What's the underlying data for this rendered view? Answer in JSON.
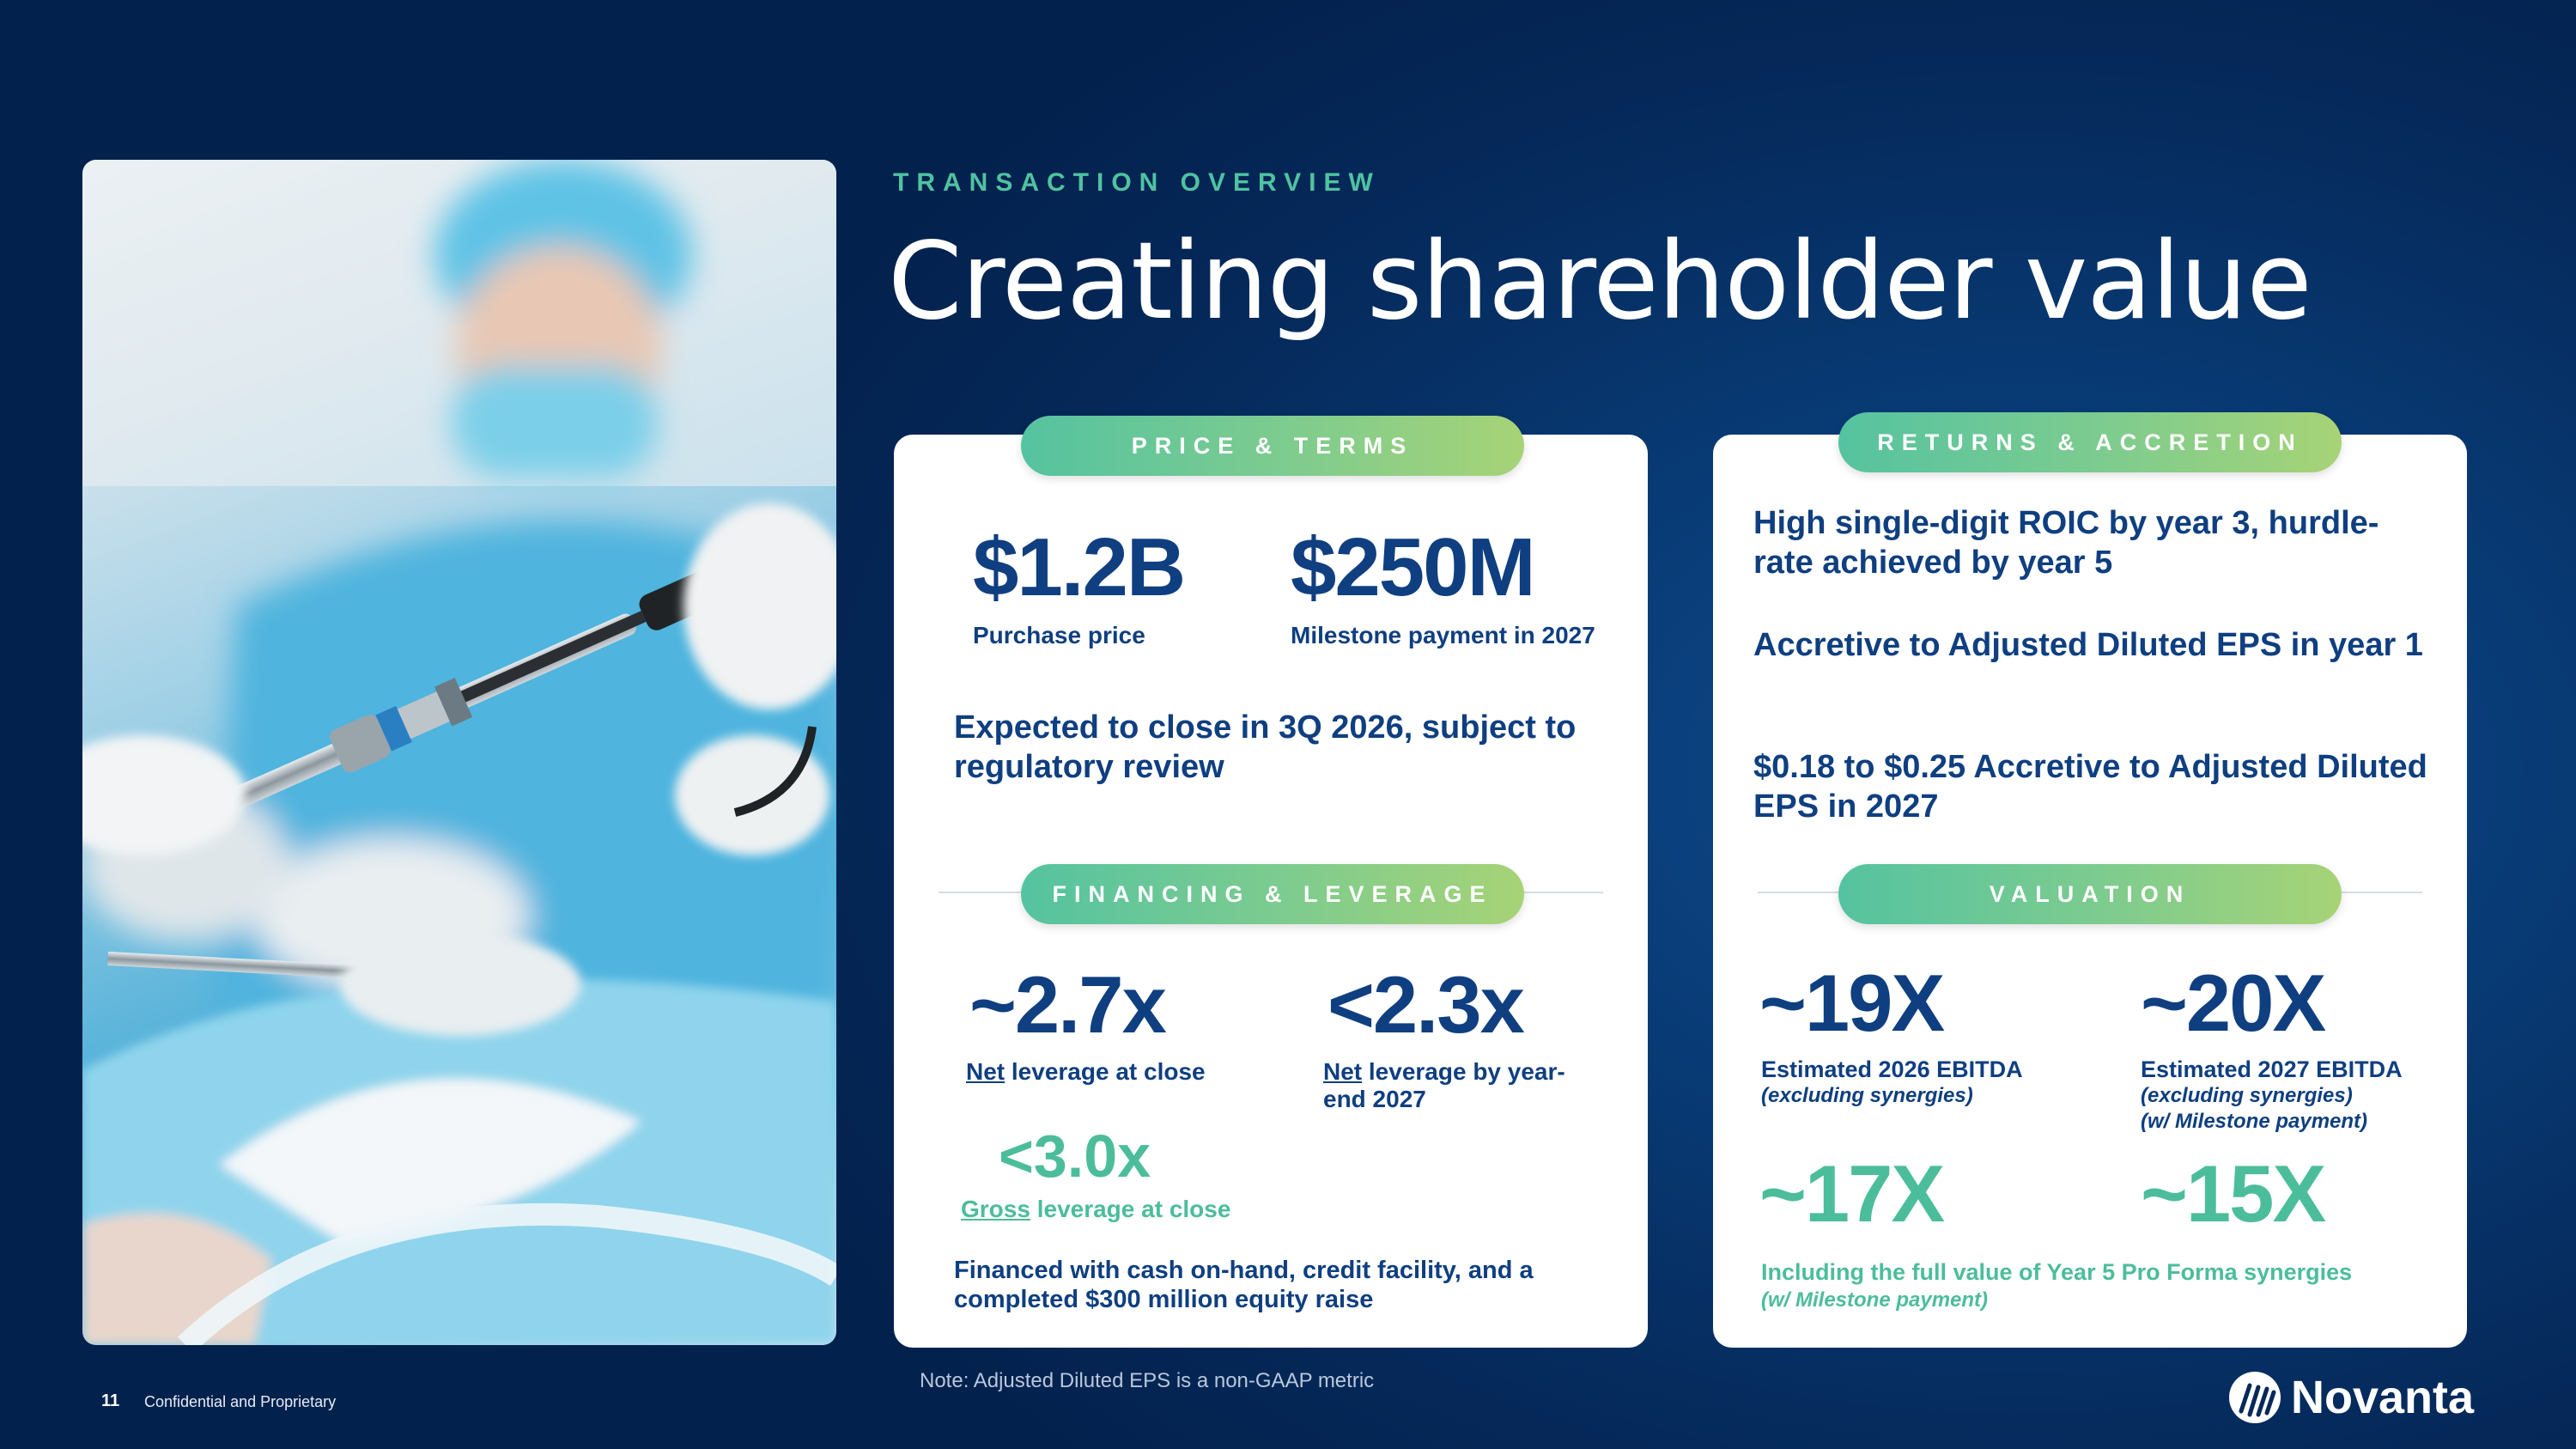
{
  "header": {
    "eyebrow": "TRANSACTION OVERVIEW",
    "title": "Creating shareholder value"
  },
  "price_terms": {
    "pill": "PRICE & TERMS",
    "metric1_value": "$1.2B",
    "metric1_label": "Purchase price",
    "metric2_value": "$250M",
    "metric2_label": "Milestone payment in 2027",
    "closing": "Expected to close in 3Q 2026, subject to regulatory review"
  },
  "financing": {
    "pill": "FINANCING & LEVERAGE",
    "net_close_value": "~2.7x",
    "net_close_label_u": "Net",
    "net_close_label": " leverage at close",
    "net_ye_value": "<2.3x",
    "net_ye_label_u": "Net",
    "net_ye_label_1": " leverage by year-",
    "net_ye_label_2": "end 2027",
    "gross_value": "<3.0x",
    "gross_label_u": "Gross",
    "gross_label": " leverage at close",
    "financed_1": "Financed with cash on-hand, credit facility, and a",
    "financed_2": "completed $300 million equity raise"
  },
  "returns": {
    "pill": "RETURNS & ACCRETION",
    "line1": "High single-digit ROIC by year 3, hurdle-rate achieved by year 5",
    "line2": "Accretive to Adjusted Diluted EPS in year 1",
    "line3": "$0.18 to $0.25 Accretive to Adjusted Diluted EPS in 2027"
  },
  "valuation": {
    "pill": "VALUATION",
    "v1_value": "~19X",
    "v1_label": "Estimated 2026 EBITDA",
    "v1_note": "(excluding synergies)",
    "v2_value": "~20X",
    "v2_label": "Estimated 2027 EBITDA",
    "v2_note1": "(excluding synergies)",
    "v2_note2": "(w/ Milestone payment)",
    "v3_value": "~17X",
    "v4_value": "~15X",
    "syn_label": "Including the full value of Year 5 Pro Forma synergies",
    "syn_note": "(w/ Milestone payment)"
  },
  "footer": {
    "page_number": "11",
    "confidential": "Confidential and Proprietary",
    "note": "Note: Adjusted Diluted EPS is a non-GAAP metric",
    "brand": "Novanta"
  },
  "colors": {
    "background": "#05295a",
    "navy_text": "#0f3f80",
    "teal_accent": "#4cbd9a",
    "pill_gradient_start": "#55c3a0",
    "pill_gradient_end": "#a7d376"
  },
  "icons": {
    "logo": "novanta-logo-icon"
  }
}
